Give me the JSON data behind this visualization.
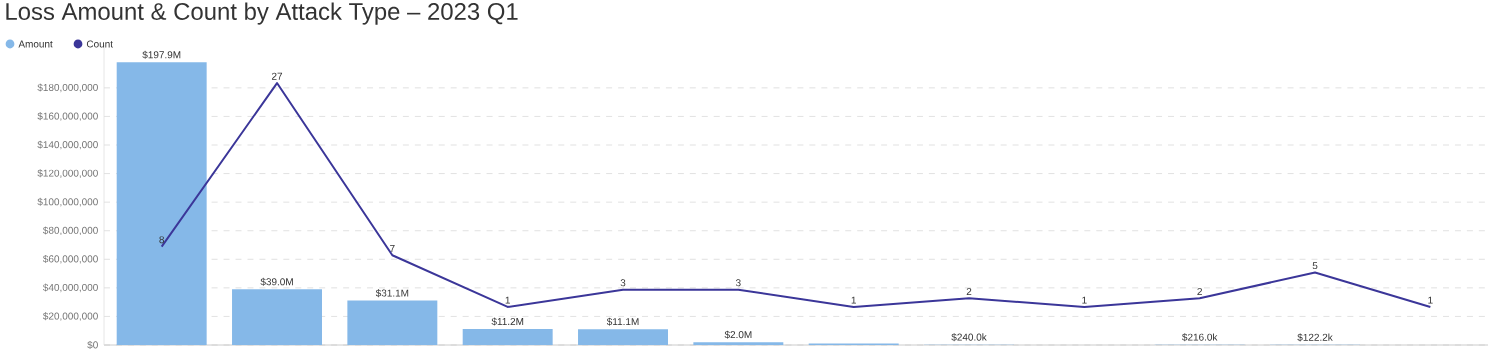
{
  "chart_data": {
    "type": "bar",
    "title": "Loss Amount & Count by Attack Type – 2023 Q1",
    "categories": [
      null,
      null,
      null,
      null,
      null,
      null,
      null,
      null,
      null,
      null,
      null,
      null
    ],
    "series": [
      {
        "name": "Amount",
        "color": "#85b8e8",
        "values": [
          197900000,
          39000000,
          31100000,
          11200000,
          11100000,
          2000000,
          1000000,
          240000,
          null,
          216000,
          122200,
          null
        ],
        "value_labels": [
          "$197.9M",
          "$39.0M",
          "$31.1M",
          "$11.2M",
          "$11.1M",
          "$2.0M",
          null,
          "$240.0k",
          null,
          "$216.0k",
          "$122.2k",
          null
        ]
      },
      {
        "name": "Count",
        "type": "line",
        "axis": "y2",
        "color": "#3b3699",
        "values": [
          8,
          27,
          7,
          1,
          3,
          3,
          1,
          2,
          1,
          2,
          5,
          1
        ],
        "value_labels": [
          "8",
          "27",
          "7",
          "1",
          "3",
          "3",
          "1",
          "2",
          "1",
          "2",
          "5",
          "1"
        ]
      }
    ],
    "ylim": [
      0,
      210000000
    ],
    "yticks": [
      {
        "value": 0,
        "label": "$0"
      },
      {
        "value": 20000000,
        "label": "$20,000,000"
      },
      {
        "value": 40000000,
        "label": "$40,000,000"
      },
      {
        "value": 60000000,
        "label": "$60,000,000"
      },
      {
        "value": 80000000,
        "label": "$80,000,000"
      },
      {
        "value": 100000000,
        "label": "$100,000,000"
      },
      {
        "value": 120000000,
        "label": "$120,000,000"
      },
      {
        "value": 140000000,
        "label": "$140,000,000"
      },
      {
        "value": 160000000,
        "label": "$160,000,000"
      },
      {
        "value": 180000000,
        "label": "$180,000,000"
      }
    ],
    "grid": "y",
    "legend": "top left",
    "tick_labels": "y",
    "marker": "none",
    "line_style": "solid"
  }
}
